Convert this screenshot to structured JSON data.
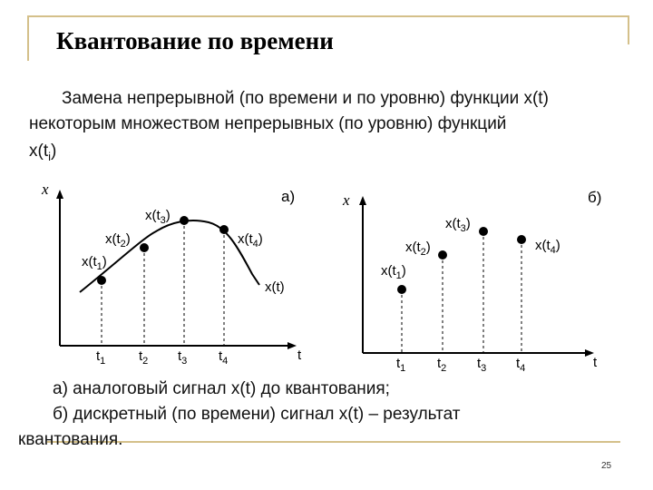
{
  "slide": {
    "title": "Квантование по времени",
    "body_line1": "Замена непрерывной (по времени и по уровню) функции x(t)",
    "body_line2": "некоторым множеством непрерывных (по уровню) функций",
    "body_line3": "x(t",
    "body_line3_sub": "i",
    "body_line3_end": ")",
    "caption_a": "а) аналоговый сигнал x(t) до квантования;",
    "caption_b1": "б) дискретный (по времени) сигнал x(t) – результат",
    "caption_b2": "квантования.",
    "page_number": "25"
  },
  "diagram_a": {
    "panel_label": "а)",
    "axis_y": "x",
    "axis_x": "t",
    "curve_label": "x(t)",
    "ticks": [
      {
        "base": "t",
        "sub": "1"
      },
      {
        "base": "t",
        "sub": "2"
      },
      {
        "base": "t",
        "sub": "3"
      },
      {
        "base": "t",
        "sub": "4"
      }
    ],
    "point_labels": [
      {
        "base": "x(t",
        "sub": "1",
        "end": ")"
      },
      {
        "base": "x(t",
        "sub": "2",
        "end": ")"
      },
      {
        "base": "x(t",
        "sub": "3",
        "end": ")"
      },
      {
        "base": "x(t",
        "sub": "4",
        "end": ")"
      }
    ]
  },
  "diagram_b": {
    "panel_label": "б)",
    "axis_y": "x",
    "axis_x": "t",
    "ticks": [
      {
        "base": "t",
        "sub": "1"
      },
      {
        "base": "t",
        "sub": "2"
      },
      {
        "base": "t",
        "sub": "3"
      },
      {
        "base": "t",
        "sub": "4"
      }
    ],
    "point_labels": [
      {
        "base": "x(t",
        "sub": "1",
        "end": ")"
      },
      {
        "base": "x(t",
        "sub": "2",
        "end": ")"
      },
      {
        "base": "x(t",
        "sub": "3",
        "end": ")"
      },
      {
        "base": "x(t",
        "sub": "4",
        "end": ")"
      }
    ]
  }
}
